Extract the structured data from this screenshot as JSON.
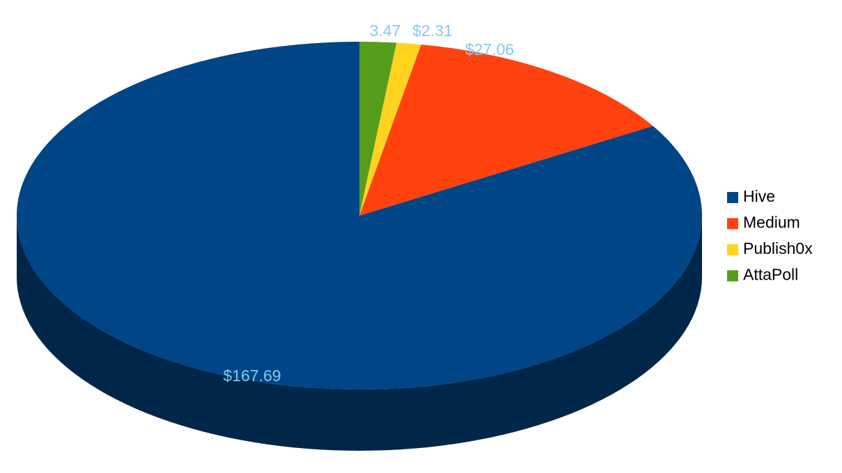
{
  "chart_data": {
    "type": "pie",
    "categories": [
      "Hive",
      "Medium",
      "Publish0x",
      "AttaPoll"
    ],
    "values": [
      167.69,
      27.06,
      2.31,
      3.47
    ],
    "value_labels": [
      "$167.69",
      "$27.06",
      "$2.31",
      "3.47"
    ],
    "colors": [
      "#004586",
      "#ff420e",
      "#ffd320",
      "#579d1c"
    ],
    "legend": "right"
  }
}
